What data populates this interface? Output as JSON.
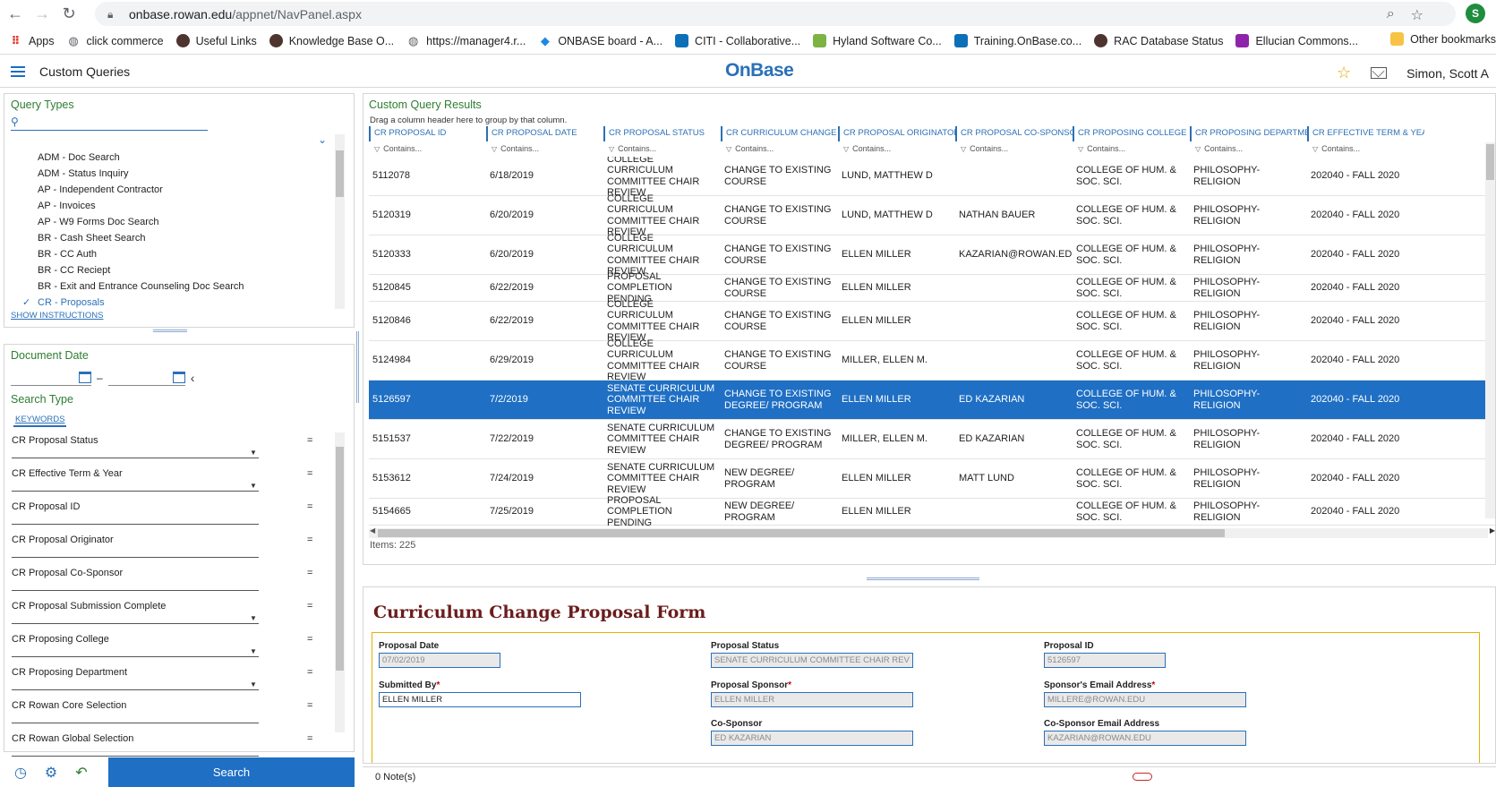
{
  "browser": {
    "url_host": "onbase.rowan.edu",
    "url_path": "/appnet/NavPanel.aspx",
    "profile_initial": "S",
    "bookmarks": [
      {
        "label": "Apps",
        "icon": "apps-grid-icon",
        "color": "#e53935"
      },
      {
        "label": "click commerce",
        "icon": "globe-icon",
        "color": "#5f6368"
      },
      {
        "label": "Useful Links",
        "icon": "rowan-owl-icon",
        "color": "#4e342e"
      },
      {
        "label": "Knowledge Base O...",
        "icon": "rowan-owl-icon",
        "color": "#4e342e"
      },
      {
        "label": "https://manager4.r...",
        "icon": "globe-icon",
        "color": "#5f6368"
      },
      {
        "label": "ONBASE board - A...",
        "icon": "diamond-icon",
        "color": "#1e88e5"
      },
      {
        "label": "CITI - Collaborative...",
        "icon": "citi-icon",
        "color": "#0d6fb8"
      },
      {
        "label": "Hyland Software Co...",
        "icon": "hyland-icon",
        "color": "#7cb342"
      },
      {
        "label": "Training.OnBase.co...",
        "icon": "onbase-icon",
        "color": "#0d6fb8"
      },
      {
        "label": "RAC Database Status",
        "icon": "rowan-owl-icon",
        "color": "#4e342e"
      },
      {
        "label": "Ellucian Commons...",
        "icon": "ellucian-icon",
        "color": "#8e24aa"
      }
    ],
    "more": "»",
    "other_bookmarks": "Other bookmarks"
  },
  "header": {
    "title": "Custom Queries",
    "brand": "OnBase",
    "user": "Simon, Scott A"
  },
  "query_types": {
    "title": "Query Types",
    "items": [
      "ADM - Doc Search",
      "ADM - Status Inquiry",
      "AP - Independent Contractor",
      "AP - Invoices",
      "AP - W9 Forms Doc Search",
      "BR - Cash Sheet Search",
      "BR - CC Auth",
      "BR - CC Reciept",
      "BR - Exit and Entrance Counseling Doc Search",
      "CR - Proposals"
    ],
    "selected_index": 9,
    "show_instructions": "SHOW INSTRUCTIONS"
  },
  "search_panel": {
    "document_date_title": "Document Date",
    "date_separator": "–",
    "search_type_title": "Search Type",
    "keywords_tab": "KEYWORDS",
    "keywords": [
      {
        "label": "CR Proposal Status",
        "dropdown": true
      },
      {
        "label": "CR Effective Term & Year",
        "dropdown": true
      },
      {
        "label": "CR Proposal ID",
        "dropdown": false
      },
      {
        "label": "CR Proposal Originator",
        "dropdown": false
      },
      {
        "label": "CR Proposal Co-Sponsor",
        "dropdown": false
      },
      {
        "label": "CR Proposal Submission Complete",
        "dropdown": true
      },
      {
        "label": "CR Proposing College",
        "dropdown": true
      },
      {
        "label": "CR Proposing Department",
        "dropdown": true
      },
      {
        "label": "CR Rowan Core Selection",
        "dropdown": false
      },
      {
        "label": "CR Rowan Global Selection",
        "dropdown": false
      }
    ],
    "operator": "=",
    "search_button": "Search"
  },
  "results": {
    "title": "Custom Query Results",
    "hint": "Drag a column header here to group by that column.",
    "filter_placeholder": "Contains...",
    "columns": [
      "CR PROPOSAL ID",
      "CR PROPOSAL DATE",
      "CR PROPOSAL STATUS",
      "CR CURRICULUM CHANGE T...",
      "CR PROPOSAL ORIGINATOR",
      "CR PROPOSAL CO-SPONSOR",
      "CR PROPOSING COLLEGE",
      "CR PROPOSING DEPARTMENT",
      "CR EFFECTIVE TERM & YEAR"
    ],
    "rows": [
      [
        "5112078",
        "6/18/2019",
        "COLLEGE CURRICULUM COMMITTEE CHAIR REVIEW",
        "CHANGE TO EXISTING COURSE",
        "LUND, MATTHEW D",
        "",
        "COLLEGE OF HUM. & SOC. SCI.",
        "PHILOSOPHY-RELIGION",
        "202040 - FALL 2020"
      ],
      [
        "5120319",
        "6/20/2019",
        "COLLEGE CURRICULUM COMMITTEE CHAIR REVIEW",
        "CHANGE TO EXISTING COURSE",
        "LUND, MATTHEW D",
        "NATHAN BAUER",
        "COLLEGE OF HUM. & SOC. SCI.",
        "PHILOSOPHY-RELIGION",
        "202040 - FALL 2020"
      ],
      [
        "5120333",
        "6/20/2019",
        "COLLEGE CURRICULUM COMMITTEE CHAIR REVIEW",
        "CHANGE TO EXISTING COURSE",
        "ELLEN MILLER",
        "KAZARIAN@ROWAN.EDU",
        "COLLEGE OF HUM. & SOC. SCI.",
        "PHILOSOPHY-RELIGION",
        "202040 - FALL 2020"
      ],
      [
        "5120845",
        "6/22/2019",
        "PROPOSAL COMPLETION PENDING",
        "CHANGE TO EXISTING COURSE",
        "ELLEN MILLER",
        "",
        "COLLEGE OF HUM. & SOC. SCI.",
        "PHILOSOPHY-RELIGION",
        "202040 - FALL 2020"
      ],
      [
        "5120846",
        "6/22/2019",
        "COLLEGE CURRICULUM COMMITTEE CHAIR REVIEW",
        "CHANGE TO EXISTING COURSE",
        "ELLEN MILLER",
        "",
        "COLLEGE OF HUM. & SOC. SCI.",
        "PHILOSOPHY-RELIGION",
        "202040 - FALL 2020"
      ],
      [
        "5124984",
        "6/29/2019",
        "COLLEGE CURRICULUM COMMITTEE CHAIR REVIEW",
        "CHANGE TO EXISTING COURSE",
        "MILLER, ELLEN M.",
        "",
        "COLLEGE OF HUM. & SOC. SCI.",
        "PHILOSOPHY-RELIGION",
        "202040 - FALL 2020"
      ],
      [
        "5126597",
        "7/2/2019",
        "SENATE CURRICULUM COMMITTEE CHAIR REVIEW",
        "CHANGE TO EXISTING DEGREE/ PROGRAM",
        "ELLEN MILLER",
        "ED KAZARIAN",
        "COLLEGE OF HUM. & SOC. SCI.",
        "PHILOSOPHY-RELIGION",
        "202040 - FALL 2020"
      ],
      [
        "5151537",
        "7/22/2019",
        "SENATE CURRICULUM COMMITTEE CHAIR REVIEW",
        "CHANGE TO EXISTING DEGREE/ PROGRAM",
        "MILLER, ELLEN M.",
        "ED KAZARIAN",
        "COLLEGE OF HUM. & SOC. SCI.",
        "PHILOSOPHY-RELIGION",
        "202040 - FALL 2020"
      ],
      [
        "5153612",
        "7/24/2019",
        "SENATE CURRICULUM COMMITTEE CHAIR REVIEW",
        "NEW DEGREE/ PROGRAM",
        "ELLEN MILLER",
        "MATT LUND",
        "COLLEGE OF HUM. & SOC. SCI.",
        "PHILOSOPHY-RELIGION",
        "202040 - FALL 2020"
      ],
      [
        "5154665",
        "7/25/2019",
        "PROPOSAL COMPLETION PENDING",
        "NEW DEGREE/ PROGRAM",
        "ELLEN MILLER",
        "",
        "COLLEGE OF HUM. & SOC. SCI.",
        "PHILOSOPHY-RELIGION",
        "202040 - FALL 2020"
      ]
    ],
    "selected_row": 6,
    "items_count": "Items: 225"
  },
  "form": {
    "title": "Curriculum Change Proposal Form",
    "fields": {
      "proposal_date": {
        "label": "Proposal Date",
        "value": "07/02/2019"
      },
      "proposal_status": {
        "label": "Proposal Status",
        "value": "SENATE CURRICULUM COMMITTEE CHAIR REV"
      },
      "proposal_id": {
        "label": "Proposal ID",
        "value": "5126597"
      },
      "submitted_by": {
        "label": "Submitted By",
        "value": "ELLEN MILLER"
      },
      "proposal_sponsor": {
        "label": "Proposal Sponsor",
        "value": "ELLEN MILLER"
      },
      "sponsor_email": {
        "label": "Sponsor's Email Address",
        "value": "MILLERE@ROWAN.EDU"
      },
      "co_sponsor": {
        "label": "Co-Sponsor",
        "value": "ED KAZARIAN"
      },
      "co_sponsor_email": {
        "label": "Co-Sponsor Email Address",
        "value": "KAZARIAN@ROWAN.EDU"
      }
    },
    "required_mark": "*"
  },
  "status_bar": {
    "notes": "0 Note(s)"
  }
}
